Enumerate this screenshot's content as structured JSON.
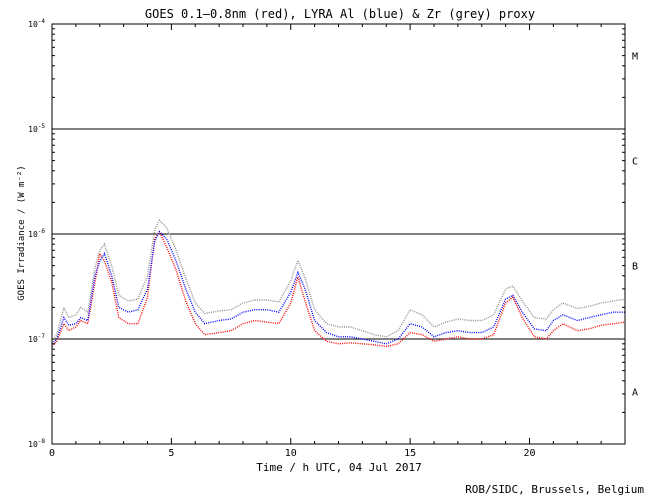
{
  "chart_data": {
    "type": "line",
    "title": "GOES 0.1–0.8nm (red), LYRA Al (blue) & Zr (grey) proxy",
    "xlabel": "Time / h UTC, 04 Jul 2017",
    "ylabel": "GOES Irradiance / (W m⁻²)",
    "xlim": [
      0,
      24
    ],
    "ylim": [
      1e-08,
      0.0001
    ],
    "yscale": "log",
    "x_ticks": [
      0,
      5,
      10,
      15,
      20
    ],
    "y_tick_labels": [
      {
        "base": "10",
        "exp": "-8",
        "value": 1e-08
      },
      {
        "base": "10",
        "exp": "-7",
        "value": 1e-07
      },
      {
        "base": "10",
        "exp": "-6",
        "value": 1e-06
      },
      {
        "base": "10",
        "exp": "-5",
        "value": 1e-05
      },
      {
        "base": "10",
        "exp": "-4",
        "value": 0.0001
      }
    ],
    "class_lines": [
      1e-07,
      1e-06,
      1e-05
    ],
    "class_labels": [
      {
        "label": "A",
        "value": 3.16e-08
      },
      {
        "label": "B",
        "value": 5e-07
      },
      {
        "label": "C",
        "value": 5e-06
      },
      {
        "label": "M",
        "value": 5e-05
      }
    ],
    "series": [
      {
        "name": "GOES 0.1-0.8nm",
        "color": "#ff0000",
        "points": [
          [
            0,
            8.5e-08
          ],
          [
            0.2,
            9.5e-08
          ],
          [
            0.5,
            1.4e-07
          ],
          [
            0.7,
            1.2e-07
          ],
          [
            1.0,
            1.3e-07
          ],
          [
            1.2,
            1.5e-07
          ],
          [
            1.5,
            1.4e-07
          ],
          [
            1.8,
            3.5e-07
          ],
          [
            2.0,
            6.5e-07
          ],
          [
            2.2,
            5.5e-07
          ],
          [
            2.5,
            3.5e-07
          ],
          [
            2.8,
            1.6e-07
          ],
          [
            3.2,
            1.4e-07
          ],
          [
            3.6,
            1.4e-07
          ],
          [
            4.0,
            2.5e-07
          ],
          [
            4.3,
            9e-07
          ],
          [
            4.5,
            1.05e-06
          ],
          [
            4.8,
            7.5e-07
          ],
          [
            5.2,
            4.5e-07
          ],
          [
            5.6,
            2.3e-07
          ],
          [
            6.0,
            1.4e-07
          ],
          [
            6.4,
            1.1e-07
          ],
          [
            7.0,
            1.15e-07
          ],
          [
            7.5,
            1.2e-07
          ],
          [
            8.0,
            1.4e-07
          ],
          [
            8.5,
            1.5e-07
          ],
          [
            9.0,
            1.45e-07
          ],
          [
            9.5,
            1.4e-07
          ],
          [
            10.0,
            2.2e-07
          ],
          [
            10.3,
            3.9e-07
          ],
          [
            10.6,
            2.3e-07
          ],
          [
            11.0,
            1.2e-07
          ],
          [
            11.5,
            9.5e-08
          ],
          [
            12.0,
            9e-08
          ],
          [
            12.5,
            9.2e-08
          ],
          [
            13.0,
            9e-08
          ],
          [
            13.5,
            8.8e-08
          ],
          [
            14.0,
            8.5e-08
          ],
          [
            14.5,
            9e-08
          ],
          [
            15.0,
            1.15e-07
          ],
          [
            15.5,
            1.1e-07
          ],
          [
            16.0,
            9.5e-08
          ],
          [
            16.5,
            1e-07
          ],
          [
            17.0,
            1.05e-07
          ],
          [
            17.5,
            1e-07
          ],
          [
            18.0,
            1e-07
          ],
          [
            18.5,
            1.1e-07
          ],
          [
            19.0,
            2.2e-07
          ],
          [
            19.3,
            2.5e-07
          ],
          [
            19.7,
            1.6e-07
          ],
          [
            20.2,
            1.05e-07
          ],
          [
            20.7,
            1e-07
          ],
          [
            21.0,
            1.2e-07
          ],
          [
            21.4,
            1.4e-07
          ],
          [
            22.0,
            1.2e-07
          ],
          [
            22.5,
            1.25e-07
          ],
          [
            23.0,
            1.35e-07
          ],
          [
            23.5,
            1.4e-07
          ],
          [
            24.0,
            1.45e-07
          ]
        ]
      },
      {
        "name": "LYRA Al proxy",
        "color": "#0000ff",
        "points": [
          [
            0,
            9e-08
          ],
          [
            0.2,
            1e-07
          ],
          [
            0.5,
            1.6e-07
          ],
          [
            0.7,
            1.35e-07
          ],
          [
            1.0,
            1.4e-07
          ],
          [
            1.2,
            1.6e-07
          ],
          [
            1.5,
            1.5e-07
          ],
          [
            1.8,
            4e-07
          ],
          [
            2.0,
            5.5e-07
          ],
          [
            2.2,
            6.5e-07
          ],
          [
            2.5,
            4e-07
          ],
          [
            2.8,
            2e-07
          ],
          [
            3.2,
            1.8e-07
          ],
          [
            3.6,
            1.9e-07
          ],
          [
            4.0,
            3e-07
          ],
          [
            4.3,
            8.5e-07
          ],
          [
            4.5,
            1.05e-06
          ],
          [
            4.8,
            9e-07
          ],
          [
            5.2,
            5.5e-07
          ],
          [
            5.6,
            3e-07
          ],
          [
            6.0,
            1.8e-07
          ],
          [
            6.4,
            1.4e-07
          ],
          [
            7.0,
            1.5e-07
          ],
          [
            7.5,
            1.55e-07
          ],
          [
            8.0,
            1.8e-07
          ],
          [
            8.5,
            1.9e-07
          ],
          [
            9.0,
            1.9e-07
          ],
          [
            9.5,
            1.8e-07
          ],
          [
            10.0,
            2.8e-07
          ],
          [
            10.3,
            4.3e-07
          ],
          [
            10.6,
            3e-07
          ],
          [
            11.0,
            1.5e-07
          ],
          [
            11.5,
            1.15e-07
          ],
          [
            12.0,
            1.05e-07
          ],
          [
            12.5,
            1.05e-07
          ],
          [
            13.0,
            1e-07
          ],
          [
            13.5,
            9.5e-08
          ],
          [
            14.0,
            9e-08
          ],
          [
            14.5,
            1e-07
          ],
          [
            15.0,
            1.4e-07
          ],
          [
            15.5,
            1.3e-07
          ],
          [
            16.0,
            1.05e-07
          ],
          [
            16.5,
            1.15e-07
          ],
          [
            17.0,
            1.2e-07
          ],
          [
            17.5,
            1.15e-07
          ],
          [
            18.0,
            1.15e-07
          ],
          [
            18.5,
            1.3e-07
          ],
          [
            19.0,
            2.4e-07
          ],
          [
            19.3,
            2.6e-07
          ],
          [
            19.7,
            1.8e-07
          ],
          [
            20.2,
            1.25e-07
          ],
          [
            20.7,
            1.2e-07
          ],
          [
            21.0,
            1.5e-07
          ],
          [
            21.4,
            1.7e-07
          ],
          [
            22.0,
            1.5e-07
          ],
          [
            22.5,
            1.6e-07
          ],
          [
            23.0,
            1.7e-07
          ],
          [
            23.5,
            1.8e-07
          ],
          [
            24.0,
            1.8e-07
          ]
        ]
      },
      {
        "name": "LYRA Zr proxy",
        "color": "#909090",
        "points": [
          [
            0,
            9.5e-08
          ],
          [
            0.2,
            1.1e-07
          ],
          [
            0.5,
            2e-07
          ],
          [
            0.7,
            1.6e-07
          ],
          [
            1.0,
            1.7e-07
          ],
          [
            1.2,
            2e-07
          ],
          [
            1.5,
            1.8e-07
          ],
          [
            1.8,
            4.8e-07
          ],
          [
            2.0,
            7e-07
          ],
          [
            2.2,
            8e-07
          ],
          [
            2.5,
            5e-07
          ],
          [
            2.8,
            2.6e-07
          ],
          [
            3.2,
            2.3e-07
          ],
          [
            3.6,
            2.4e-07
          ],
          [
            4.0,
            4e-07
          ],
          [
            4.3,
            1.1e-06
          ],
          [
            4.5,
            1.35e-06
          ],
          [
            4.8,
            1.15e-06
          ],
          [
            5.2,
            7e-07
          ],
          [
            5.6,
            3.8e-07
          ],
          [
            6.0,
            2.2e-07
          ],
          [
            6.4,
            1.75e-07
          ],
          [
            7.0,
            1.85e-07
          ],
          [
            7.5,
            1.9e-07
          ],
          [
            8.0,
            2.2e-07
          ],
          [
            8.5,
            2.35e-07
          ],
          [
            9.0,
            2.35e-07
          ],
          [
            9.5,
            2.25e-07
          ],
          [
            10.0,
            3.6e-07
          ],
          [
            10.3,
            5.6e-07
          ],
          [
            10.6,
            3.8e-07
          ],
          [
            11.0,
            1.9e-07
          ],
          [
            11.5,
            1.4e-07
          ],
          [
            12.0,
            1.3e-07
          ],
          [
            12.5,
            1.3e-07
          ],
          [
            13.0,
            1.2e-07
          ],
          [
            13.5,
            1.1e-07
          ],
          [
            14.0,
            1.05e-07
          ],
          [
            14.5,
            1.2e-07
          ],
          [
            15.0,
            1.9e-07
          ],
          [
            15.5,
            1.7e-07
          ],
          [
            16.0,
            1.3e-07
          ],
          [
            16.5,
            1.45e-07
          ],
          [
            17.0,
            1.55e-07
          ],
          [
            17.5,
            1.5e-07
          ],
          [
            18.0,
            1.5e-07
          ],
          [
            18.5,
            1.7e-07
          ],
          [
            19.0,
            3e-07
          ],
          [
            19.3,
            3.2e-07
          ],
          [
            19.7,
            2.3e-07
          ],
          [
            20.2,
            1.6e-07
          ],
          [
            20.7,
            1.55e-07
          ],
          [
            21.0,
            1.9e-07
          ],
          [
            21.4,
            2.2e-07
          ],
          [
            22.0,
            1.95e-07
          ],
          [
            22.5,
            2.05e-07
          ],
          [
            23.0,
            2.2e-07
          ],
          [
            23.5,
            2.3e-07
          ],
          [
            24.0,
            2.4e-07
          ]
        ]
      }
    ]
  },
  "credit": "ROB/SIDC, Brussels, Belgium"
}
